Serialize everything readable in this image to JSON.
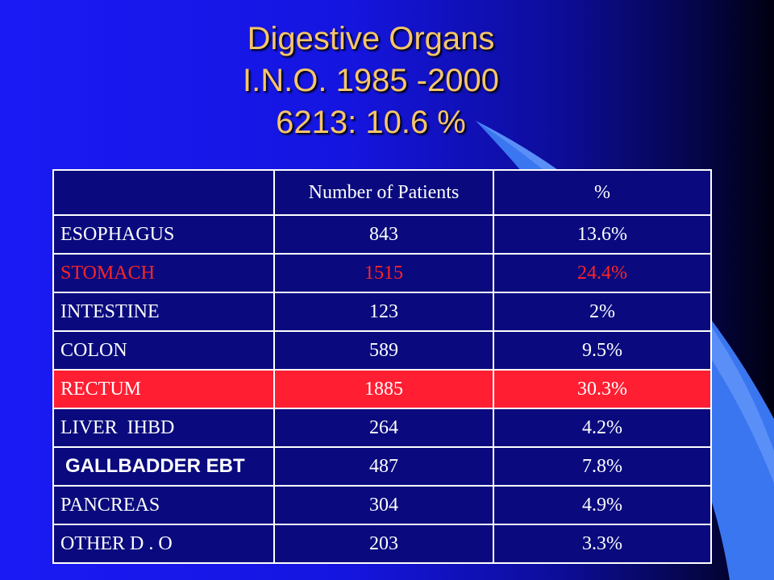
{
  "title": {
    "line1": "Digestive Organs",
    "line2": "I.N.O. 1985 -2000",
    "line3": "6213: 10.6 %"
  },
  "table": {
    "headers": [
      "",
      "Number of Patients",
      "%"
    ],
    "rows": [
      {
        "organ": "ESOPHAGUS",
        "patients": "843",
        "percent": "13.6%"
      },
      {
        "organ": "STOMACH",
        "patients": "1515",
        "percent": "24.4%"
      },
      {
        "organ": "INTESTINE",
        "patients": "123",
        "percent": "2%"
      },
      {
        "organ": "COLON",
        "patients": "589",
        "percent": "9.5%"
      },
      {
        "organ": "RECTUM",
        "patients": "1885",
        "percent": "30.3%"
      },
      {
        "organ": "LIVER  IHBD",
        "patients": "264",
        "percent": "4.2%"
      },
      {
        "organ": "GALLBADDER EBT",
        "patients": "487",
        "percent": "7.8%"
      },
      {
        "organ": "PANCREAS",
        "patients": "304",
        "percent": "4.9%"
      },
      {
        "organ": "OTHER D . O",
        "patients": "203",
        "percent": "3.3%"
      }
    ]
  },
  "colors": {
    "title_text": "#f5c56a",
    "highlight_text": "#ff2424",
    "highlight_row": "#ff1e32",
    "table_bg": "#0a0a7e"
  }
}
